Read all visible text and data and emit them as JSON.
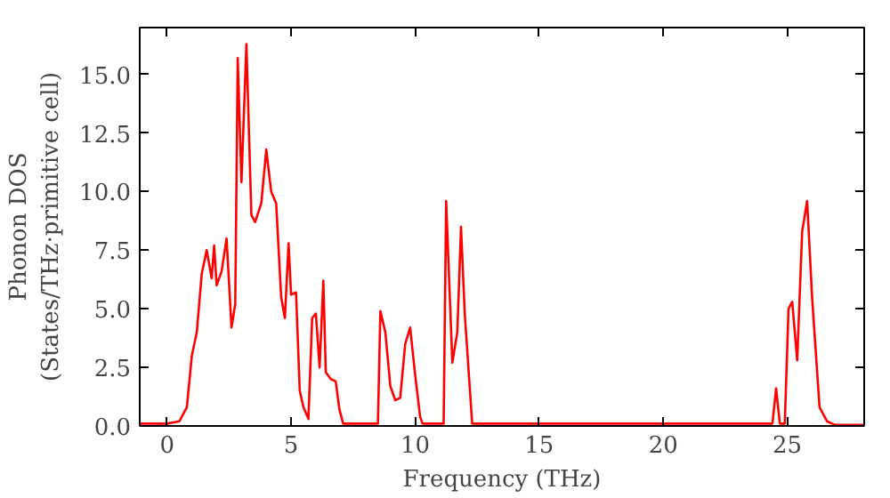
{
  "chart_data": {
    "type": "line",
    "xlabel": "Frequency (THz)",
    "ylabel": "Phonon DOS\n(States/THz·primitive cell)",
    "x": [
      -1.1,
      0,
      0.5,
      0.8,
      1.0,
      1.2,
      1.4,
      1.6,
      1.8,
      1.9,
      2.0,
      2.2,
      2.4,
      2.6,
      2.75,
      2.85,
      3.0,
      3.2,
      3.4,
      3.55,
      3.8,
      4.0,
      4.2,
      4.4,
      4.6,
      4.75,
      4.9,
      5.0,
      5.2,
      5.35,
      5.5,
      5.7,
      5.85,
      6.0,
      6.15,
      6.3,
      6.4,
      6.6,
      6.8,
      6.95,
      7.1,
      8.5,
      8.6,
      8.8,
      9.0,
      9.2,
      9.4,
      9.6,
      9.8,
      10.0,
      10.2,
      10.3,
      11.15,
      11.25,
      11.5,
      11.7,
      11.85,
      12.0,
      12.3,
      24.4,
      24.55,
      24.7,
      24.9,
      25.05,
      25.2,
      25.4,
      25.6,
      25.8,
      26.0,
      26.3,
      26.6,
      26.9,
      28.1
    ],
    "series": [
      {
        "color": "#ff0000",
        "values": [
          0.1,
          0.1,
          0.2,
          0.8,
          3.0,
          4.0,
          6.5,
          7.5,
          6.3,
          7.7,
          6.0,
          6.6,
          8.0,
          4.2,
          5.2,
          15.7,
          10.4,
          16.3,
          9.0,
          8.7,
          9.5,
          11.8,
          10.0,
          9.5,
          5.5,
          4.6,
          7.8,
          5.6,
          5.7,
          1.5,
          0.8,
          0.3,
          4.6,
          4.8,
          2.5,
          6.2,
          2.3,
          2.0,
          1.9,
          0.7,
          0.1,
          0.1,
          4.9,
          4.0,
          1.7,
          1.1,
          1.2,
          3.5,
          4.2,
          2.2,
          0.4,
          0.1,
          0.1,
          9.6,
          2.7,
          4.0,
          8.5,
          4.8,
          0.1,
          0.1,
          1.6,
          0.1,
          0.1,
          5.0,
          5.3,
          2.8,
          8.3,
          9.6,
          5.5,
          0.8,
          0.2,
          0.05,
          0.05
        ]
      }
    ],
    "xlim": [
      -1.1,
      28.1
    ],
    "ylim": [
      0,
      17.0
    ],
    "xticks": [
      0,
      5,
      10,
      15,
      20,
      25
    ],
    "yticks": [
      {
        "value": 0,
        "label": "0.0"
      },
      {
        "value": 2.5,
        "label": "2.5"
      },
      {
        "value": 5,
        "label": "5.0"
      },
      {
        "value": 7.5,
        "label": "7.5"
      },
      {
        "value": 10,
        "label": "10.0"
      },
      {
        "value": 12.5,
        "label": "12.5"
      },
      {
        "value": 15,
        "label": "15.0"
      }
    ],
    "grid": false,
    "marker": "none",
    "line_style": "solid"
  }
}
